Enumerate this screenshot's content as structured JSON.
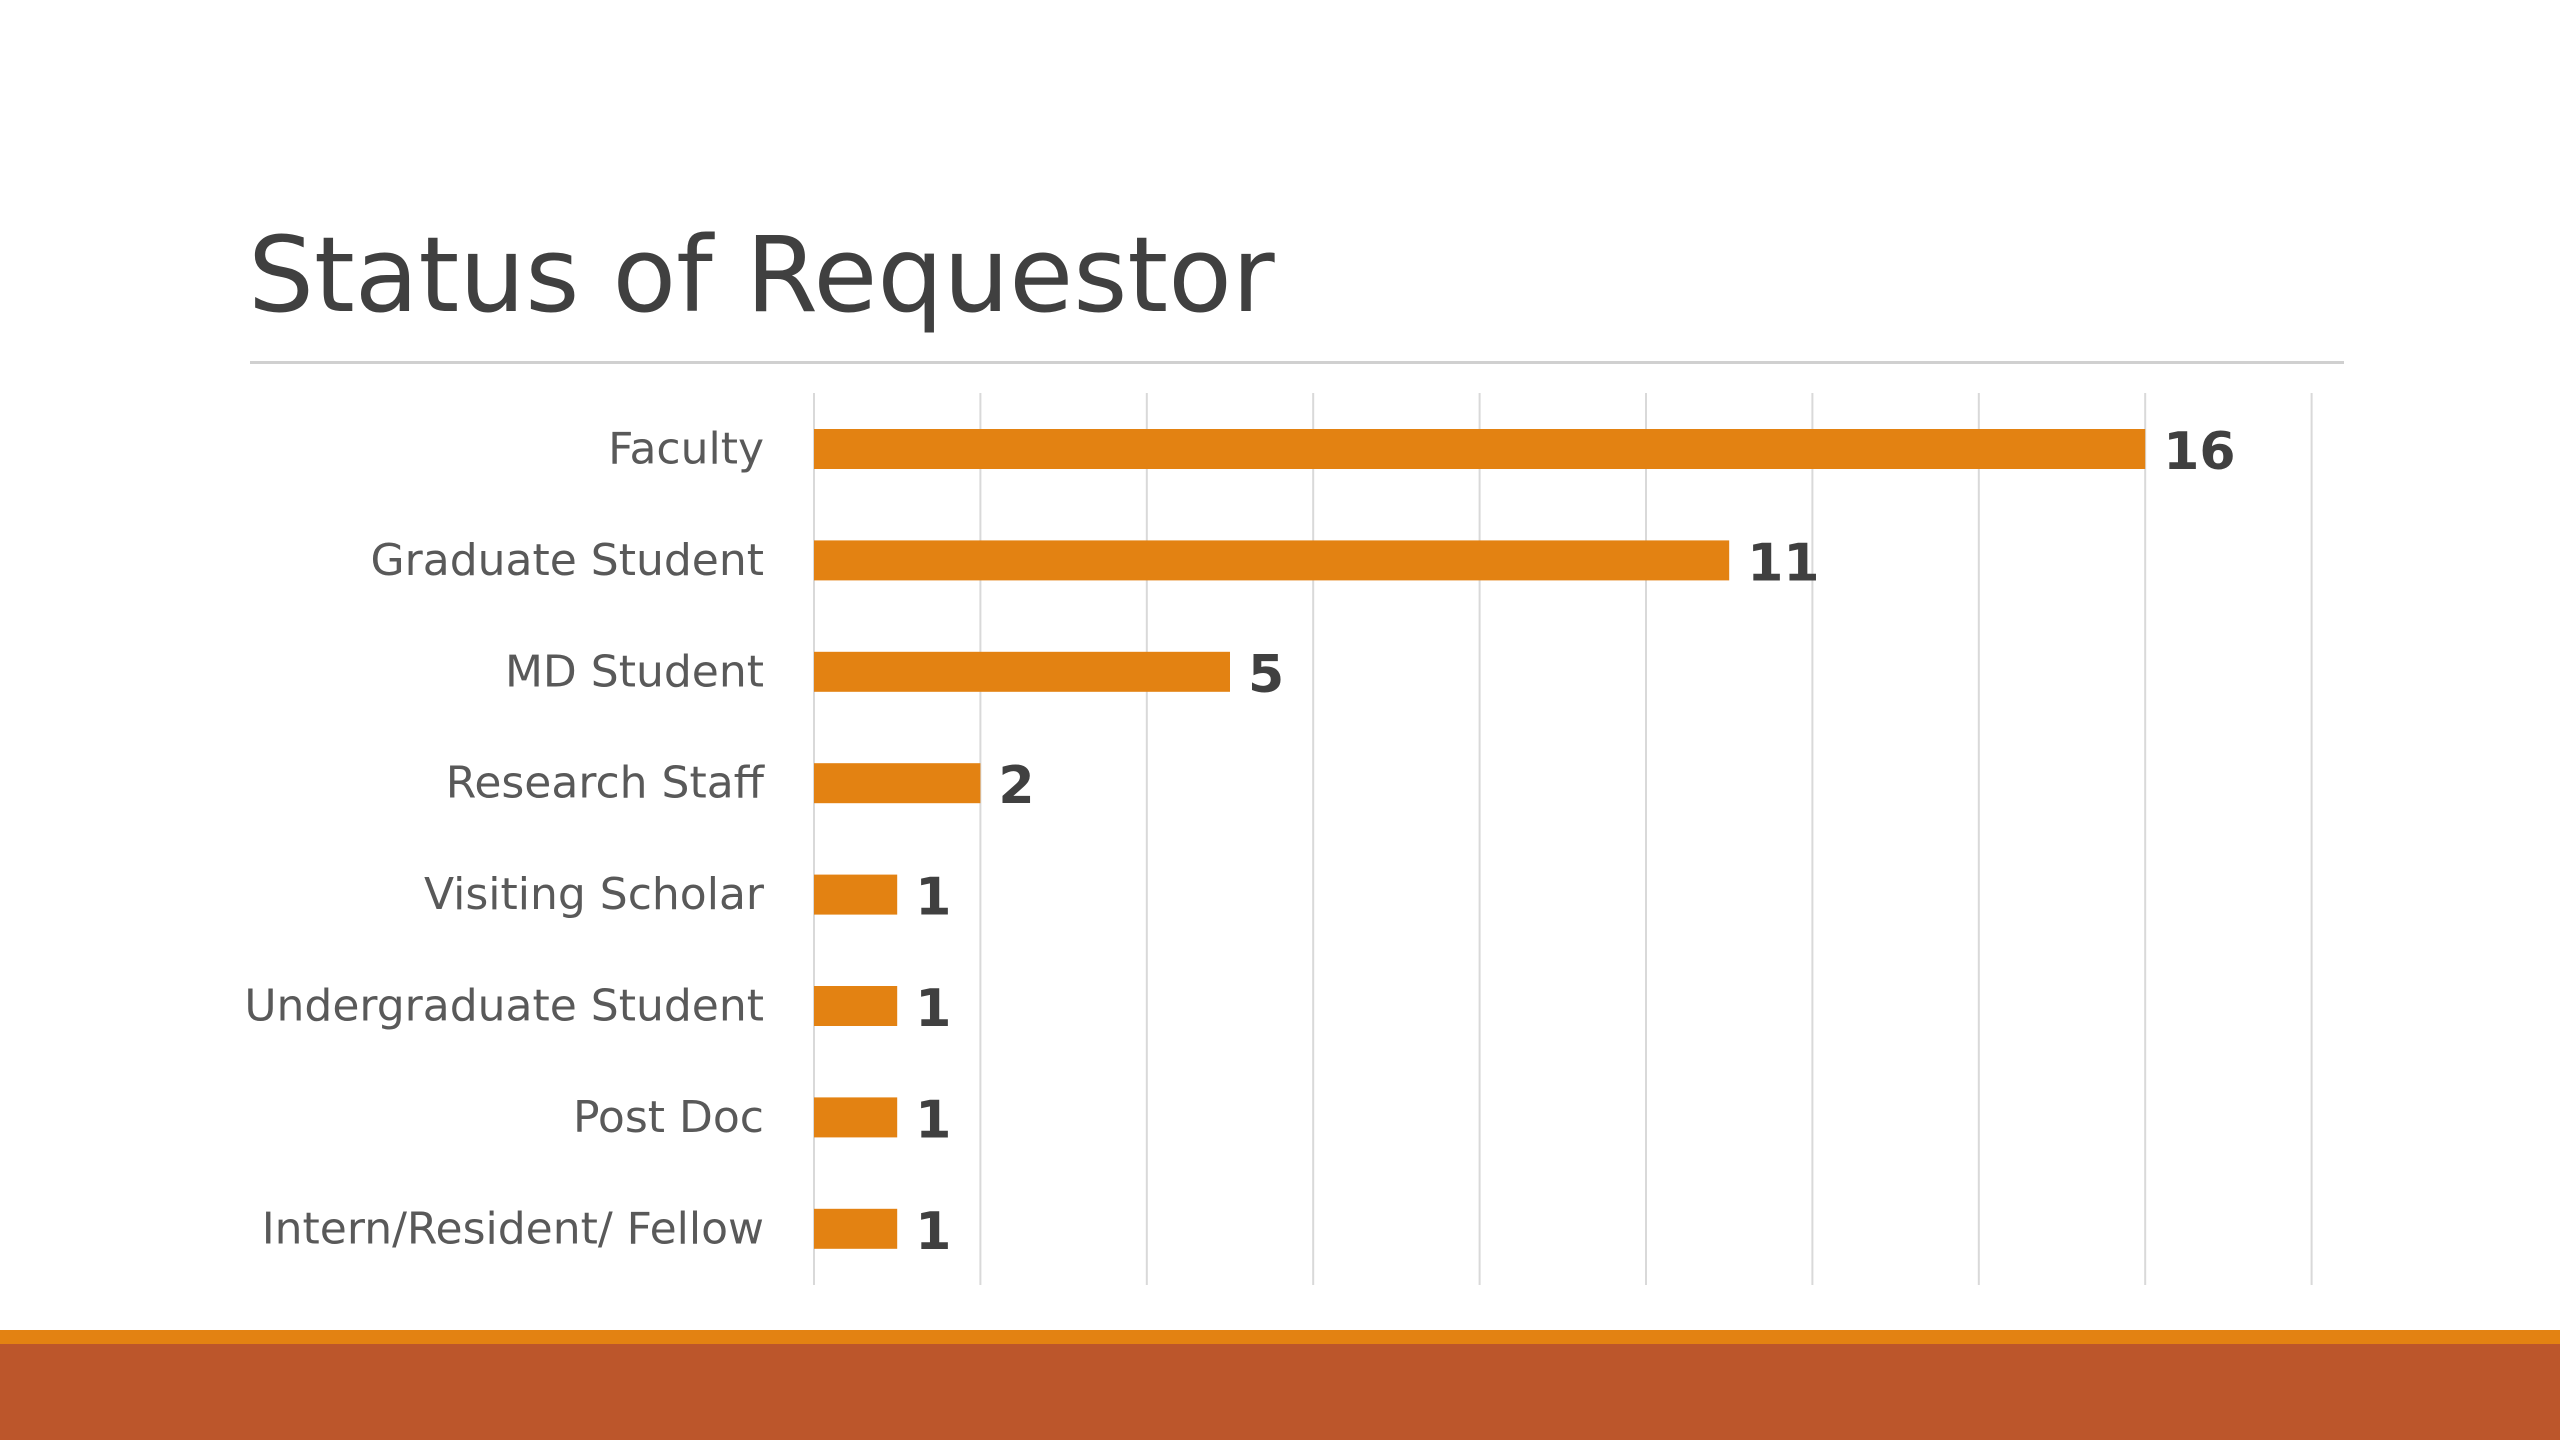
{
  "slide": {
    "title": "Status of Requestor",
    "colors": {
      "bar": "#e38212",
      "accent_band": "#e38212",
      "footer_band": "#bc562b"
    }
  },
  "chart_data": {
    "type": "bar",
    "orientation": "horizontal",
    "title": "Status of Requestor",
    "categories": [
      "Faculty",
      "Graduate Student",
      "MD Student",
      "Research Staff",
      "Visiting Scholar",
      "Undergraduate Student",
      "Post Doc",
      "Intern/Resident/ Fellow"
    ],
    "values": [
      16,
      11,
      5,
      2,
      1,
      1,
      1,
      1
    ],
    "xlim": [
      0,
      18
    ],
    "xtick_step": 2,
    "grid": true,
    "legend": "none",
    "data_labels": true
  }
}
